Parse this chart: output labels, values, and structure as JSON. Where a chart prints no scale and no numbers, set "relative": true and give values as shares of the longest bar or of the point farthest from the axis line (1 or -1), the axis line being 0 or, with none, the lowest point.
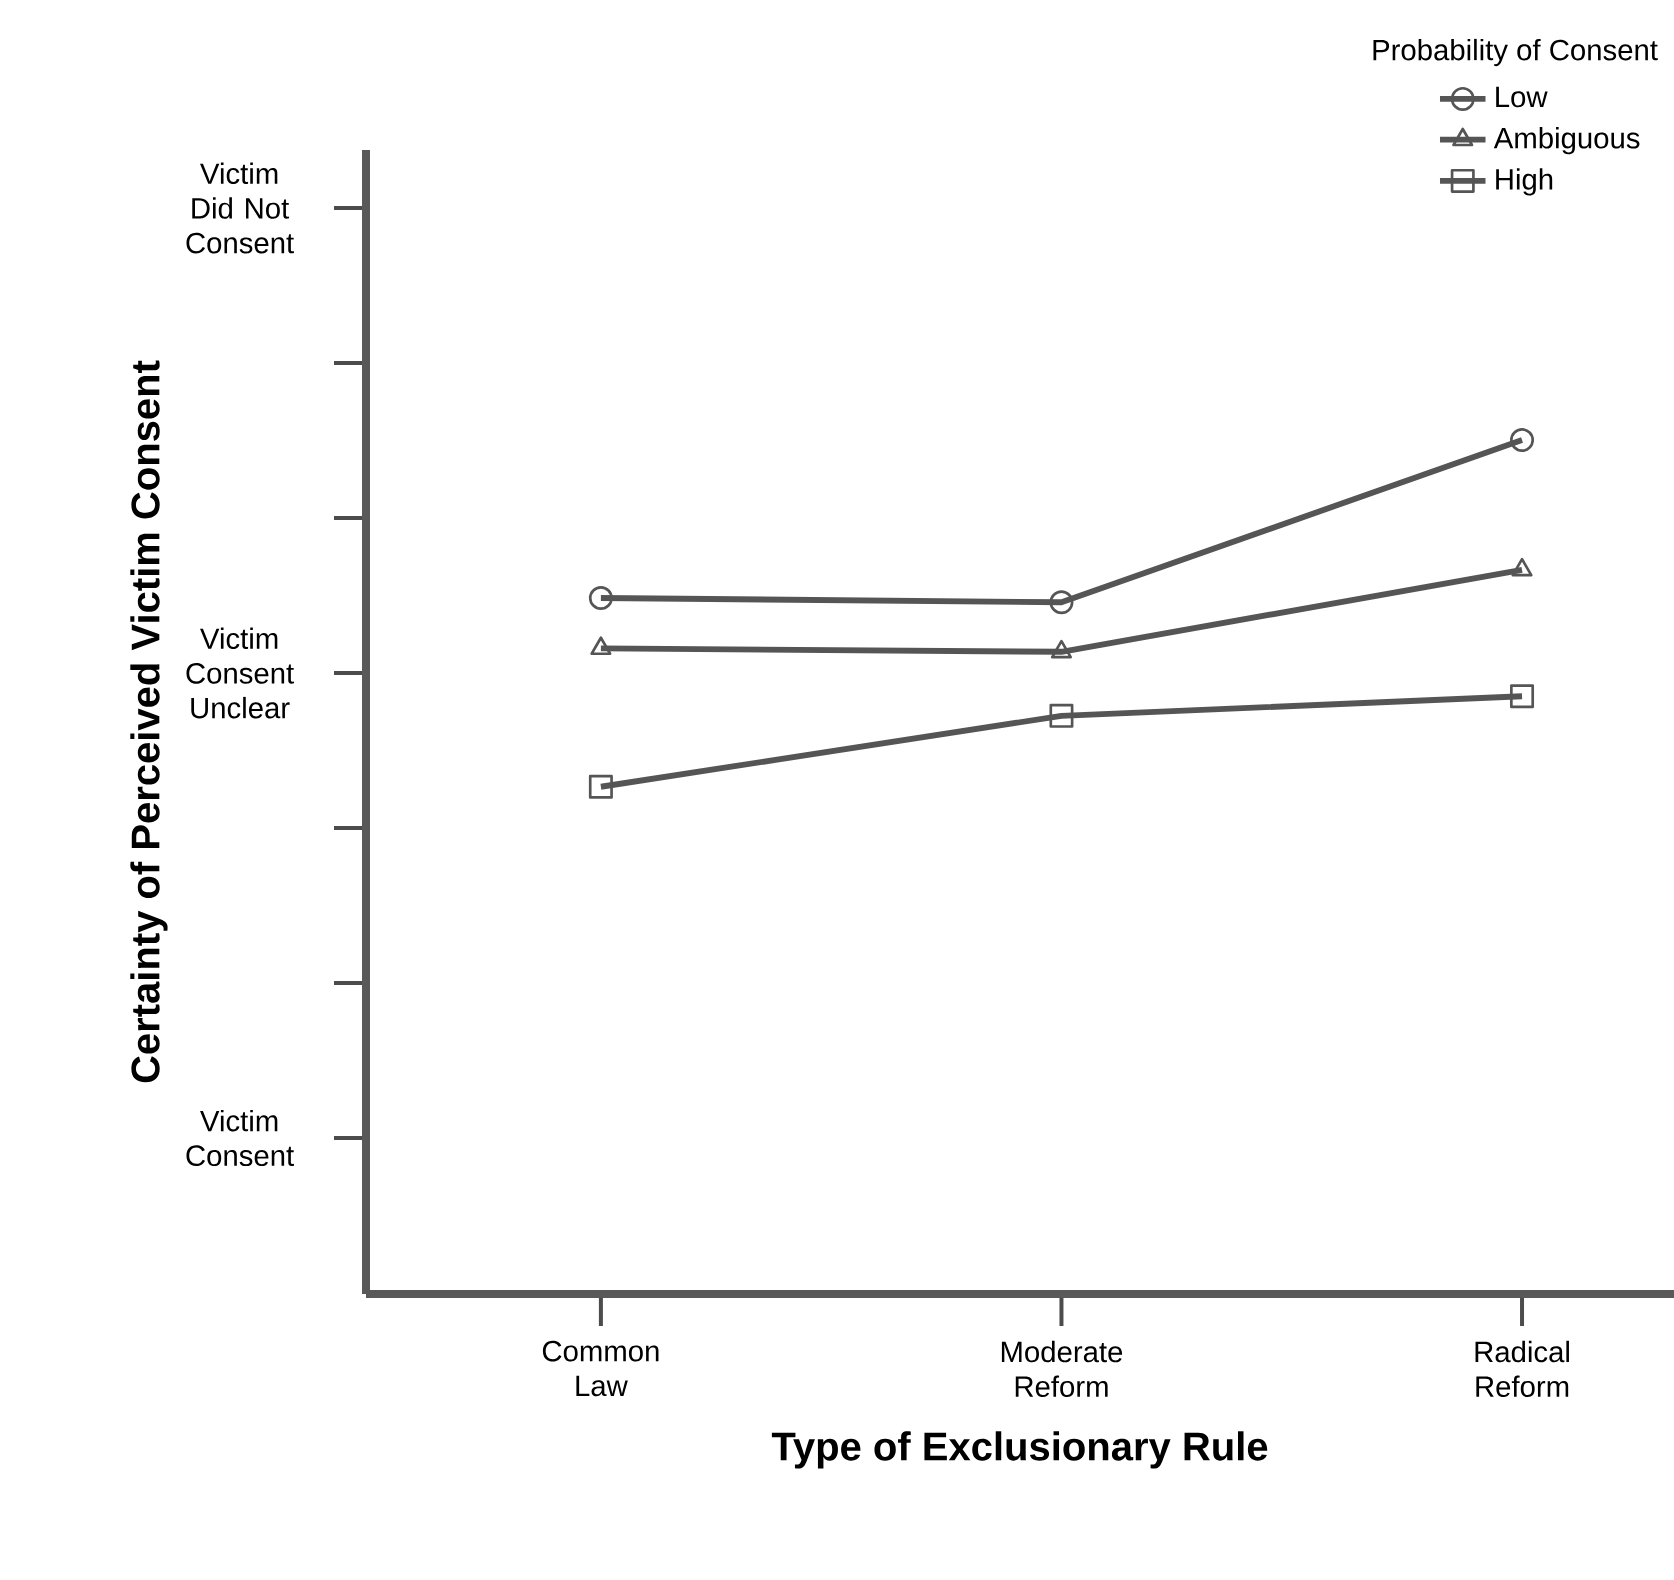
{
  "chart_data": {
    "type": "line",
    "xlabel": "Type of Exclusionary Rule",
    "ylabel": "Certainty of Perceived Victim Consent",
    "legend_title": "Probability of Consent",
    "categories": [
      "Common Law",
      "Moderate Reform",
      "Radical Reform"
    ],
    "relative": true,
    "annotations": [
      "Victim Consent",
      "Victim Consent Unclear",
      "Victim Did Not Consent"
    ],
    "series": [
      {
        "name": "Low",
        "color": "#555555",
        "marker": "circle",
        "values": [
          0.815,
          0.81,
          1
        ]
      },
      {
        "name": "Ambiguous",
        "color": "#555555",
        "marker": "triangle",
        "values": [
          0.756,
          0.752,
          0.848
        ]
      },
      {
        "name": "High",
        "color": "#555555",
        "marker": "square",
        "values": [
          0.594,
          0.677,
          0.7
        ]
      }
    ],
    "legend": "top right",
    "line_style": "solid"
  }
}
